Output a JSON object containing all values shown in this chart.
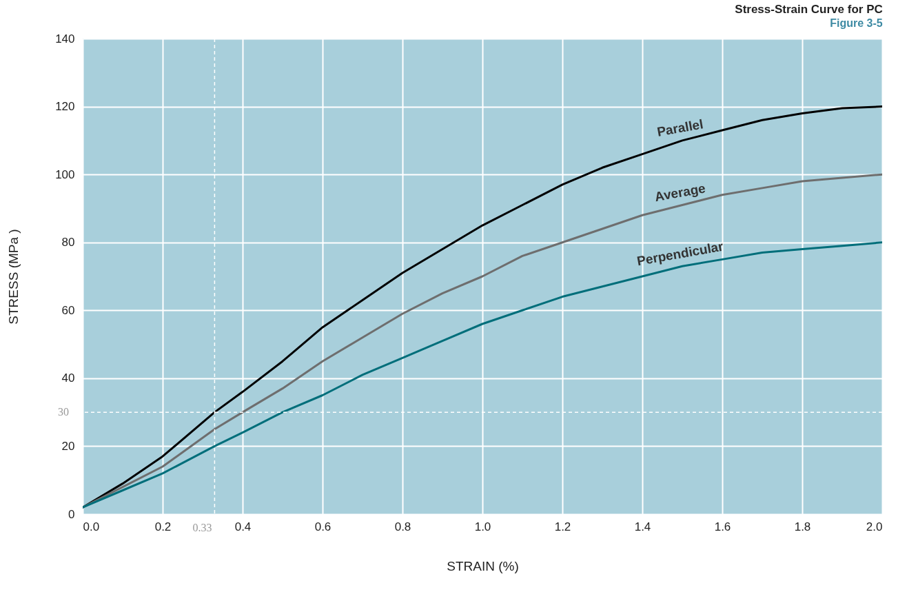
{
  "chart_data": {
    "type": "line",
    "title": "Stress-Strain Curve for PC",
    "xlabel": "STRAIN (%)",
    "ylabel": "STRESS (MPa )",
    "annotations": [
      "Figure 3-5"
    ],
    "x": [
      0,
      0.1,
      0.2,
      0.33,
      0.4,
      0.5,
      0.6,
      0.7,
      0.8,
      0.9,
      1.0,
      1.1,
      1.2,
      1.3,
      1.4,
      1.5,
      1.6,
      1.7,
      1.8,
      1.9,
      2.0
    ],
    "series": [
      {
        "name": "Parallel",
        "color": "#000000",
        "values": [
          2,
          9,
          17,
          30,
          36,
          45,
          55,
          63,
          71,
          78,
          85,
          91,
          97,
          102,
          106,
          110,
          113,
          116,
          118,
          119.5,
          120
        ]
      },
      {
        "name": "Average",
        "color": "#6e6e6e",
        "values": [
          2,
          8,
          14,
          25,
          30,
          37,
          45,
          52,
          59,
          65,
          70,
          76,
          80,
          84,
          88,
          91,
          94,
          96,
          98,
          99,
          100
        ]
      },
      {
        "name": "Perpendicular",
        "color": "#006e7a",
        "values": [
          2,
          7,
          12,
          20,
          24,
          30,
          35,
          41,
          46,
          51,
          56,
          60,
          64,
          67,
          70,
          73,
          75,
          77,
          78,
          79,
          80
        ]
      }
    ],
    "ref_lines": [
      {
        "axis": "y",
        "value": 30,
        "label": "30",
        "color": "#ffffff",
        "line_style": "dashed"
      },
      {
        "axis": "x",
        "value": 0.33,
        "label": "0.33",
        "color": "#ffffff",
        "line_style": "dashed"
      }
    ],
    "xlim": [
      0,
      2
    ],
    "xticks": [
      {
        "value": 0,
        "label": "0.0"
      },
      {
        "value": 0.2,
        "label": "0.2"
      },
      {
        "value": 0.4,
        "label": "0.4"
      },
      {
        "value": 0.6,
        "label": "0.6"
      },
      {
        "value": 0.8,
        "label": "0.8"
      },
      {
        "value": 1.0,
        "label": "1.0"
      },
      {
        "value": 1.2,
        "label": "1.2"
      },
      {
        "value": 1.4,
        "label": "1.4"
      },
      {
        "value": 1.6,
        "label": "1.6"
      },
      {
        "value": 1.8,
        "label": "1.8"
      },
      {
        "value": 2.0,
        "label": "2.0"
      }
    ],
    "ylim": [
      0,
      140
    ],
    "yticks": [
      0,
      20,
      40,
      60,
      80,
      100,
      120,
      140
    ],
    "grid": true,
    "marker": "none",
    "line_style": "solid"
  }
}
